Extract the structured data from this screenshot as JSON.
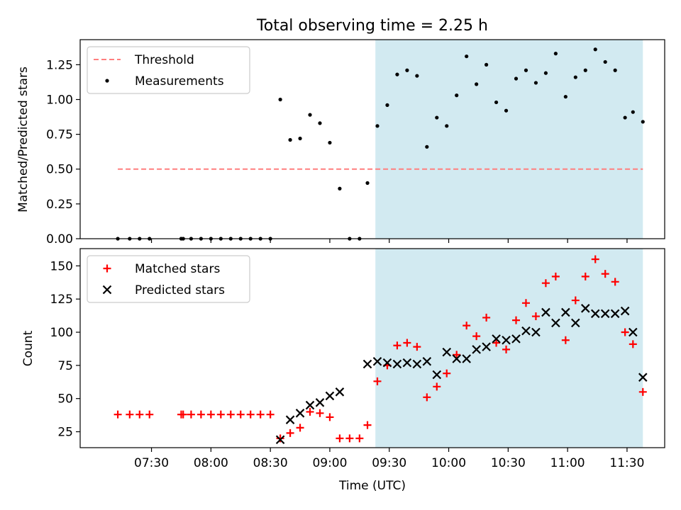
{
  "chart_data": [
    {
      "type": "scatter",
      "title": "Total observing time = 2.25 h",
      "xlabel": "",
      "ylabel": "Matched/Predicted stars",
      "ylim": [
        0,
        1.43
      ],
      "yticks": [
        "0.00",
        "0.25",
        "0.50",
        "0.75",
        "1.00",
        "1.25"
      ],
      "threshold": {
        "name": "Threshold",
        "value": 0.5,
        "x_start": "07:13",
        "x_end": "11:38",
        "color": "#ff7f7f"
      },
      "highlight": {
        "x_start": "09:23",
        "x_end": "11:38",
        "color": "#add8e6"
      },
      "legend": {
        "placement": "upper left",
        "entries": [
          "Threshold",
          "Measurements"
        ]
      },
      "series": [
        {
          "name": "Measurements",
          "color": "#000000",
          "marker": "dot",
          "x": [
            "07:13",
            "07:19",
            "07:24",
            "07:29",
            "07:45",
            "07:46",
            "07:50",
            "07:55",
            "08:00",
            "08:05",
            "08:10",
            "08:15",
            "08:20",
            "08:25",
            "08:30",
            "08:35",
            "08:40",
            "08:45",
            "08:50",
            "08:55",
            "09:00",
            "09:05",
            "09:10",
            "09:15",
            "09:19",
            "09:24",
            "09:29",
            "09:34",
            "09:39",
            "09:44",
            "09:49",
            "09:54",
            "09:59",
            "10:04",
            "10:09",
            "10:14",
            "10:19",
            "10:24",
            "10:29",
            "10:34",
            "10:39",
            "10:44",
            "10:49",
            "10:54",
            "10:59",
            "11:04",
            "11:09",
            "11:14",
            "11:19",
            "11:24",
            "11:29",
            "11:33",
            "11:38"
          ],
          "y": [
            0,
            0,
            0,
            0,
            0,
            0,
            0,
            0,
            0,
            0,
            0,
            0,
            0,
            0,
            0,
            1.0,
            0.71,
            0.72,
            0.89,
            0.83,
            0.69,
            0.36,
            0,
            0,
            0.4,
            0.81,
            0.96,
            1.18,
            1.21,
            1.17,
            0.66,
            0.87,
            0.81,
            1.03,
            1.31,
            1.11,
            1.25,
            0.98,
            0.92,
            1.15,
            1.21,
            1.12,
            1.19,
            1.33,
            1.02,
            1.16,
            1.21,
            1.36,
            1.27,
            1.21,
            0.87,
            0.91,
            0.84
          ]
        }
      ]
    },
    {
      "type": "scatter",
      "title": "",
      "xlabel": "Time (UTC)",
      "ylabel": "Count",
      "ylim": [
        13,
        163
      ],
      "xlim": [
        "06:54",
        "11:49"
      ],
      "xticks": [
        "07:30",
        "08:00",
        "08:30",
        "09:00",
        "09:30",
        "10:00",
        "10:30",
        "11:00",
        "11:30"
      ],
      "yticks": [
        "25",
        "50",
        "75",
        "100",
        "125",
        "150"
      ],
      "highlight": {
        "x_start": "09:23",
        "x_end": "11:38",
        "color": "#add8e6"
      },
      "legend": {
        "placement": "upper left",
        "entries": [
          "Matched stars",
          "Predicted stars"
        ]
      },
      "series": [
        {
          "name": "Matched stars",
          "color": "#ff0000",
          "marker": "plus",
          "x": [
            "07:13",
            "07:19",
            "07:24",
            "07:29",
            "07:45",
            "07:46",
            "07:50",
            "07:55",
            "08:00",
            "08:05",
            "08:10",
            "08:15",
            "08:20",
            "08:25",
            "08:30",
            "08:35",
            "08:40",
            "08:45",
            "08:50",
            "08:55",
            "09:00",
            "09:05",
            "09:10",
            "09:15",
            "09:19",
            "09:24",
            "09:29",
            "09:34",
            "09:39",
            "09:44",
            "09:49",
            "09:54",
            "09:59",
            "10:04",
            "10:09",
            "10:14",
            "10:19",
            "10:24",
            "10:29",
            "10:34",
            "10:39",
            "10:44",
            "10:49",
            "10:54",
            "10:59",
            "11:04",
            "11:09",
            "11:14",
            "11:19",
            "11:24",
            "11:29",
            "11:33",
            "11:38"
          ],
          "y": [
            38,
            38,
            38,
            38,
            38,
            38,
            38,
            38,
            38,
            38,
            38,
            38,
            38,
            38,
            38,
            20,
            24,
            28,
            40,
            39,
            36,
            20,
            20,
            20,
            30,
            63,
            75,
            90,
            92,
            89,
            51,
            59,
            69,
            83,
            105,
            97,
            111,
            92,
            87,
            109,
            122,
            112,
            137,
            142,
            94,
            124,
            142,
            155,
            144,
            138,
            100,
            91,
            55
          ]
        },
        {
          "name": "Predicted stars",
          "color": "#000000",
          "marker": "x",
          "x": [
            "08:35",
            "08:40",
            "08:45",
            "08:50",
            "08:55",
            "09:00",
            "09:05",
            "09:19",
            "09:24",
            "09:29",
            "09:34",
            "09:39",
            "09:44",
            "09:49",
            "09:54",
            "09:59",
            "10:04",
            "10:09",
            "10:14",
            "10:19",
            "10:24",
            "10:29",
            "10:34",
            "10:39",
            "10:44",
            "10:49",
            "10:54",
            "10:59",
            "11:04",
            "11:09",
            "11:14",
            "11:19",
            "11:24",
            "11:29",
            "11:33",
            "11:38"
          ],
          "y": [
            19,
            34,
            39,
            45,
            47,
            52,
            55,
            76,
            78,
            77,
            76,
            77,
            76,
            78,
            68,
            85,
            80,
            80,
            87,
            89,
            95,
            94,
            95,
            101,
            100,
            115,
            107,
            115,
            107,
            118,
            114,
            114,
            114,
            116,
            100,
            66
          ]
        }
      ]
    }
  ]
}
